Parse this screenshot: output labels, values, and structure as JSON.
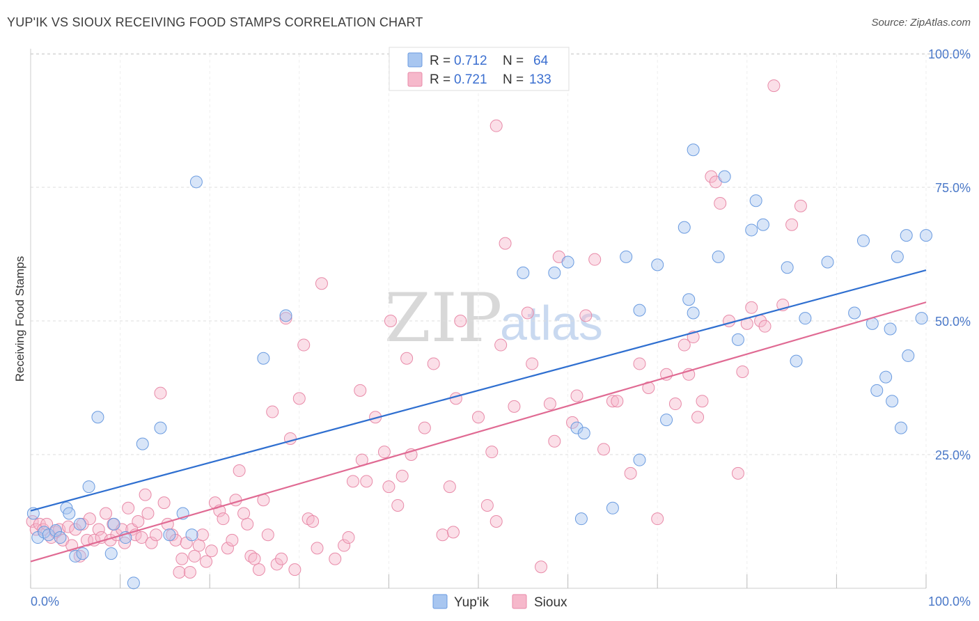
{
  "title": "YUP'IK VS SIOUX RECEIVING FOOD STAMPS CORRELATION CHART",
  "source": "Source: ZipAtlas.com",
  "watermark": {
    "part1": "ZIP",
    "part2": "atlas"
  },
  "colors": {
    "yupik_fill": "#a8c6f0",
    "yupik_stroke": "#6a9be0",
    "yupik_line": "#2f6fd0",
    "sioux_fill": "#f6b8cb",
    "sioux_stroke": "#e88aa8",
    "sioux_line": "#e06a93",
    "grid": "#dddddd",
    "tick_text": "#4a78c8"
  },
  "legend": {
    "rows": [
      {
        "r_label": "R =",
        "r_value": "0.712",
        "n_label": "N =",
        "n_value": "64"
      },
      {
        "r_label": "R =",
        "r_value": "0.721",
        "n_label": "N =",
        "n_value": "133"
      }
    ]
  },
  "bottom_legend": {
    "yupik": "Yup'ik",
    "sioux": "Sioux"
  },
  "chart_data": {
    "type": "scatter",
    "xlabel": "",
    "ylabel": "Receiving Food Stamps",
    "xlim": [
      0,
      100
    ],
    "ylim": [
      0,
      103
    ],
    "x_tick_labels": [
      "0.0%",
      "100.0%"
    ],
    "y_ticks": [
      25,
      50,
      75,
      100
    ],
    "y_tick_labels": [
      "25.0%",
      "50.0%",
      "75.0%",
      "100.0%"
    ],
    "grid": true,
    "legend_placement": "top-center",
    "series": [
      {
        "name": "Yup'ik",
        "r": 0.712,
        "n": 64,
        "trend": {
          "x": [
            0,
            100
          ],
          "y": [
            14.5,
            59.5
          ]
        },
        "points": [
          [
            0.3,
            14
          ],
          [
            0.8,
            9.5
          ],
          [
            1.5,
            10.5
          ],
          [
            2,
            10
          ],
          [
            2.8,
            10.8
          ],
          [
            3.3,
            9.5
          ],
          [
            4,
            15
          ],
          [
            4.3,
            14
          ],
          [
            5,
            6
          ],
          [
            5.5,
            12
          ],
          [
            5.8,
            6.5
          ],
          [
            6.5,
            19
          ],
          [
            7.5,
            32
          ],
          [
            9,
            6.5
          ],
          [
            9.3,
            12
          ],
          [
            10.6,
            9.5
          ],
          [
            11.5,
            1
          ],
          [
            12.5,
            27
          ],
          [
            14.5,
            30
          ],
          [
            15.5,
            10
          ],
          [
            17,
            14
          ],
          [
            18,
            10
          ],
          [
            18.5,
            76
          ],
          [
            26,
            43
          ],
          [
            28.5,
            51
          ],
          [
            55,
            59
          ],
          [
            58.5,
            59
          ],
          [
            60,
            61
          ],
          [
            61,
            30
          ],
          [
            61.5,
            13
          ],
          [
            61.8,
            29
          ],
          [
            65,
            15
          ],
          [
            66.5,
            62
          ],
          [
            68,
            24
          ],
          [
            70,
            60.5
          ],
          [
            71,
            31.5
          ],
          [
            73,
            67.5
          ],
          [
            73.5,
            54
          ],
          [
            74,
            51.5
          ],
          [
            76.8,
            62
          ],
          [
            77.5,
            77
          ],
          [
            79,
            46.5
          ],
          [
            80.5,
            67
          ],
          [
            81,
            72.5
          ],
          [
            81.8,
            68
          ],
          [
            84.5,
            60
          ],
          [
            85.5,
            42.5
          ],
          [
            86.5,
            50.5
          ],
          [
            89,
            61
          ],
          [
            92,
            51.5
          ],
          [
            93,
            65
          ],
          [
            94,
            49.5
          ],
          [
            94.5,
            37
          ],
          [
            95.5,
            39.5
          ],
          [
            96,
            48.5
          ],
          [
            96.2,
            35
          ],
          [
            96.8,
            62
          ],
          [
            97.2,
            30
          ],
          [
            97.8,
            66
          ],
          [
            98,
            43.5
          ],
          [
            99.5,
            50.5
          ],
          [
            100,
            66
          ],
          [
            74,
            82
          ],
          [
            68,
            52
          ]
        ]
      },
      {
        "name": "Sioux",
        "r": 0.721,
        "n": 133,
        "trend": {
          "x": [
            0,
            100
          ],
          "y": [
            5,
            53.5
          ]
        },
        "points": [
          [
            0.2,
            12.5
          ],
          [
            0.6,
            11
          ],
          [
            1,
            12
          ],
          [
            1.4,
            11
          ],
          [
            1.8,
            12
          ],
          [
            2.3,
            9.5
          ],
          [
            2.8,
            10.5
          ],
          [
            3.2,
            11
          ],
          [
            3.6,
            9
          ],
          [
            4.2,
            11.5
          ],
          [
            4.6,
            8
          ],
          [
            5,
            11
          ],
          [
            5.5,
            6
          ],
          [
            5.8,
            12
          ],
          [
            6.3,
            9
          ],
          [
            6.6,
            13
          ],
          [
            7.1,
            9
          ],
          [
            7.6,
            11
          ],
          [
            7.9,
            9.5
          ],
          [
            8.4,
            14
          ],
          [
            8.9,
            9
          ],
          [
            9.2,
            12
          ],
          [
            9.6,
            10
          ],
          [
            10.2,
            11
          ],
          [
            10.5,
            8.5
          ],
          [
            10.9,
            15
          ],
          [
            11.3,
            11
          ],
          [
            11.7,
            10
          ],
          [
            12,
            12.5
          ],
          [
            12.4,
            9.5
          ],
          [
            12.8,
            17.5
          ],
          [
            13.1,
            14
          ],
          [
            13.5,
            8.5
          ],
          [
            14,
            10
          ],
          [
            14.5,
            36.5
          ],
          [
            14.9,
            16
          ],
          [
            15.3,
            12
          ],
          [
            15.8,
            10
          ],
          [
            16.2,
            9
          ],
          [
            16.6,
            3
          ],
          [
            16.9,
            5.5
          ],
          [
            17.4,
            8.5
          ],
          [
            17.8,
            3
          ],
          [
            18.3,
            6
          ],
          [
            18.8,
            8
          ],
          [
            19.2,
            10
          ],
          [
            19.6,
            5
          ],
          [
            20.2,
            7
          ],
          [
            20.6,
            16
          ],
          [
            21.1,
            14.5
          ],
          [
            21.5,
            13
          ],
          [
            22,
            7.5
          ],
          [
            22.5,
            9
          ],
          [
            22.9,
            16.5
          ],
          [
            23.3,
            22
          ],
          [
            23.8,
            14
          ],
          [
            24.2,
            12
          ],
          [
            24.6,
            6
          ],
          [
            25,
            5.5
          ],
          [
            25.5,
            3.5
          ],
          [
            26,
            16.5
          ],
          [
            26.5,
            10
          ],
          [
            27,
            33
          ],
          [
            27.5,
            4.5
          ],
          [
            28,
            5.5
          ],
          [
            28.5,
            50.5
          ],
          [
            29,
            28
          ],
          [
            29.5,
            3.5
          ],
          [
            30,
            35.5
          ],
          [
            30.5,
            45.5
          ],
          [
            31,
            13
          ],
          [
            31.5,
            12.5
          ],
          [
            32,
            7.5
          ],
          [
            32.5,
            57
          ],
          [
            34,
            5.5
          ],
          [
            35,
            8
          ],
          [
            35.5,
            9.5
          ],
          [
            36,
            20
          ],
          [
            36.8,
            37
          ],
          [
            37,
            24
          ],
          [
            37.5,
            20
          ],
          [
            38.5,
            32
          ],
          [
            39.5,
            25.5
          ],
          [
            40,
            19
          ],
          [
            40.2,
            50
          ],
          [
            41,
            15.5
          ],
          [
            41.5,
            21
          ],
          [
            42,
            43
          ],
          [
            42.5,
            25
          ],
          [
            44,
            30
          ],
          [
            45,
            42
          ],
          [
            46,
            10
          ],
          [
            46.8,
            19
          ],
          [
            47.2,
            10.5
          ],
          [
            47.5,
            35.5
          ],
          [
            48,
            50
          ],
          [
            50,
            32
          ],
          [
            51,
            15.5
          ],
          [
            51.5,
            25.5
          ],
          [
            52,
            12.5
          ],
          [
            52.5,
            45.5
          ],
          [
            53,
            64.5
          ],
          [
            54,
            34
          ],
          [
            55.5,
            51.5
          ],
          [
            56,
            42
          ],
          [
            57,
            4
          ],
          [
            58,
            34.5
          ],
          [
            58.5,
            27.5
          ],
          [
            59,
            62
          ],
          [
            60.5,
            31
          ],
          [
            61,
            36
          ],
          [
            62,
            51
          ],
          [
            63,
            61.5
          ],
          [
            64,
            26
          ],
          [
            65,
            35
          ],
          [
            65.5,
            35
          ],
          [
            67,
            21.5
          ],
          [
            68,
            42
          ],
          [
            69,
            37.5
          ],
          [
            70,
            13
          ],
          [
            71,
            40
          ],
          [
            72,
            34.5
          ],
          [
            73,
            45.5
          ],
          [
            73.5,
            40
          ],
          [
            74,
            47
          ],
          [
            74.5,
            32
          ],
          [
            75,
            35
          ],
          [
            76,
            77
          ],
          [
            76.5,
            76
          ],
          [
            77,
            72
          ],
          [
            78,
            50
          ],
          [
            79,
            21.5
          ],
          [
            79.5,
            40.5
          ],
          [
            80,
            49.5
          ],
          [
            80.5,
            52.5
          ],
          [
            81.5,
            50
          ],
          [
            82,
            49
          ],
          [
            83,
            94
          ],
          [
            84,
            53
          ],
          [
            85,
            68
          ],
          [
            86,
            71.5
          ],
          [
            52,
            86.5
          ]
        ]
      }
    ]
  }
}
